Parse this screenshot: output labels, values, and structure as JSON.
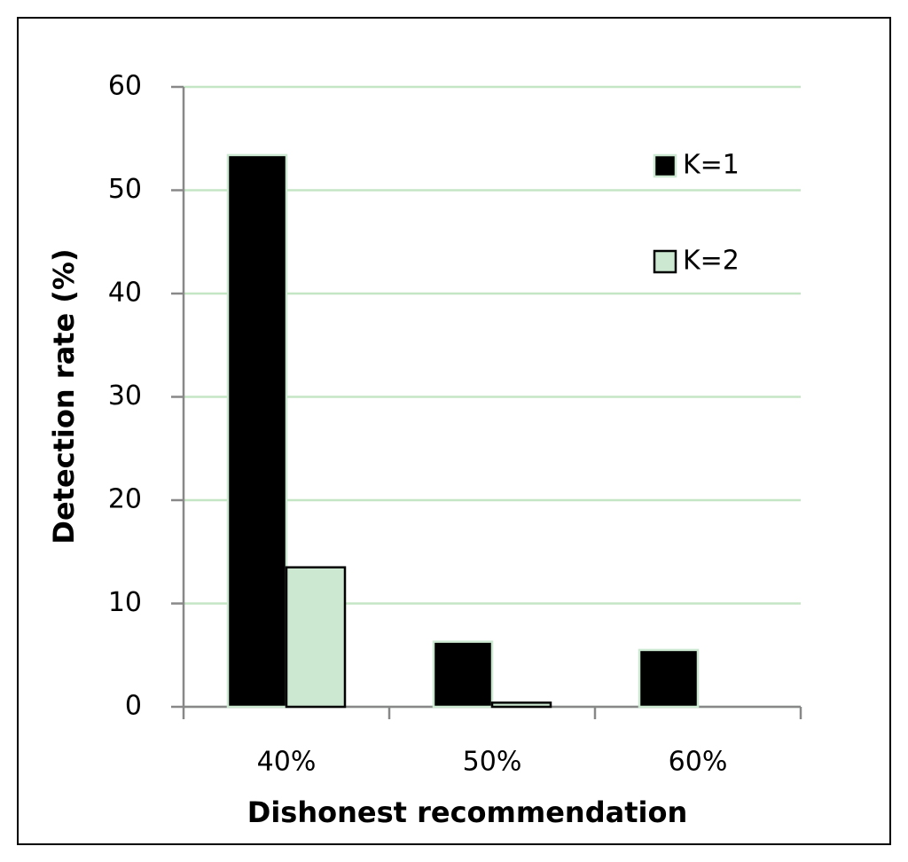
{
  "chart_data": {
    "type": "bar",
    "x_label": "Dishonest recommendation",
    "y_label": "Detection rate (%)",
    "categories": [
      "40%",
      "50%",
      "60%"
    ],
    "series": [
      {
        "name": "K=1",
        "color": "#000000",
        "values": [
          53.4,
          6.3,
          5.5
        ]
      },
      {
        "name": "K=2",
        "color": "#cce8d1",
        "values": [
          13.5,
          0.4,
          0
        ]
      }
    ],
    "ylim": [
      0,
      60
    ],
    "yticks": [
      0,
      10,
      20,
      30,
      40,
      50,
      60
    ],
    "grid": true
  }
}
